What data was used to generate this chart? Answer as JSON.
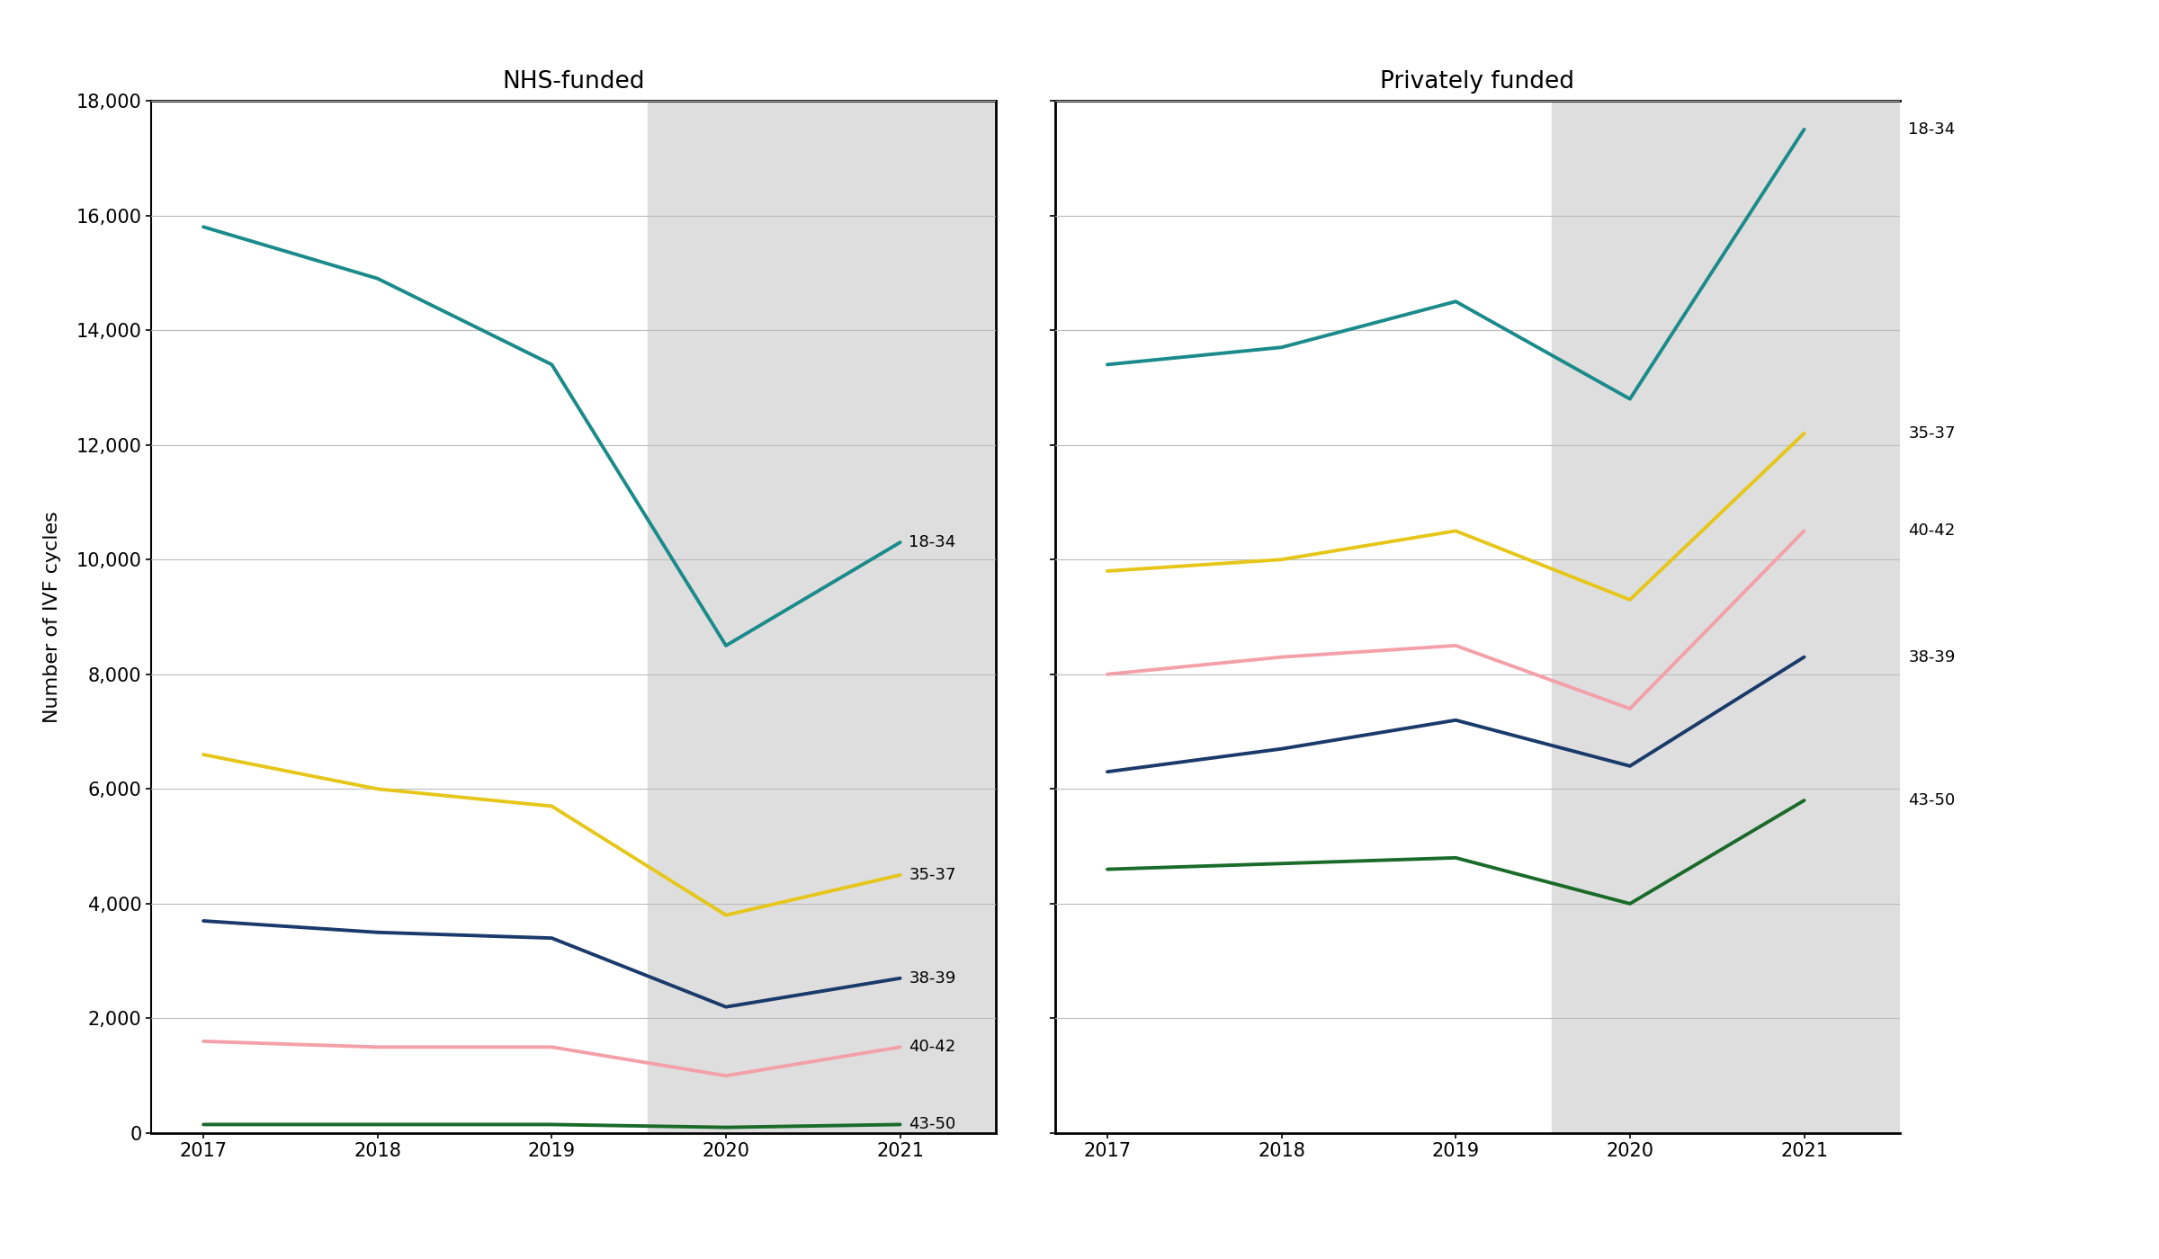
{
  "years": [
    2017,
    2018,
    2019,
    2020,
    2021
  ],
  "nhs": {
    "18-34": [
      15800,
      14900,
      13400,
      8500,
      10300
    ],
    "35-37": [
      6600,
      6000,
      5700,
      3800,
      4500
    ],
    "38-39": [
      3700,
      3500,
      3400,
      2200,
      2700
    ],
    "40-42": [
      1600,
      1500,
      1500,
      1000,
      1500
    ],
    "43-50": [
      150,
      150,
      150,
      100,
      150
    ]
  },
  "private": {
    "18-34": [
      13400,
      13700,
      14500,
      12800,
      17500
    ],
    "35-37": [
      9800,
      10000,
      10500,
      9300,
      12200
    ],
    "40-42": [
      8000,
      8300,
      8500,
      7400,
      10500
    ],
    "38-39": [
      6300,
      6700,
      7200,
      6400,
      8300
    ],
    "43-50": [
      4600,
      4700,
      4800,
      4000,
      5800
    ]
  },
  "colors": {
    "18-34": "#1a8a8a",
    "35-37": "#e6c619",
    "38-39": "#1a3a6b",
    "40-42": "#f4a0a8",
    "43-50": "#1a6b2a"
  },
  "title_nhs": "NHS-funded",
  "title_private": "Privately funded",
  "ylabel": "Number of IVF cycles",
  "ylim": [
    0,
    18000
  ],
  "yticks": [
    0,
    2000,
    4000,
    6000,
    8000,
    10000,
    12000,
    14000,
    16000,
    18000
  ],
  "shade_color": "#dedede",
  "background_color": "#ffffff",
  "line_width": 2.8,
  "nhs_labels": {
    "18-34": [
      2021,
      10300,
      "18-34"
    ],
    "35-37": [
      2021,
      4500,
      "35-37"
    ],
    "38-39": [
      2021,
      2700,
      "38-39"
    ],
    "40-42": [
      2021,
      1500,
      "40-42"
    ],
    "43-50": [
      2021,
      150,
      "43-50"
    ]
  },
  "private_labels": {
    "18-34": [
      2021,
      17500,
      "18-34"
    ],
    "35-37": [
      2021,
      12200,
      "35-37"
    ],
    "40-42": [
      2021,
      10500,
      "40-42"
    ],
    "38-39": [
      2021,
      8300,
      "38-39"
    ],
    "43-50": [
      2021,
      5800,
      "43-50"
    ]
  }
}
